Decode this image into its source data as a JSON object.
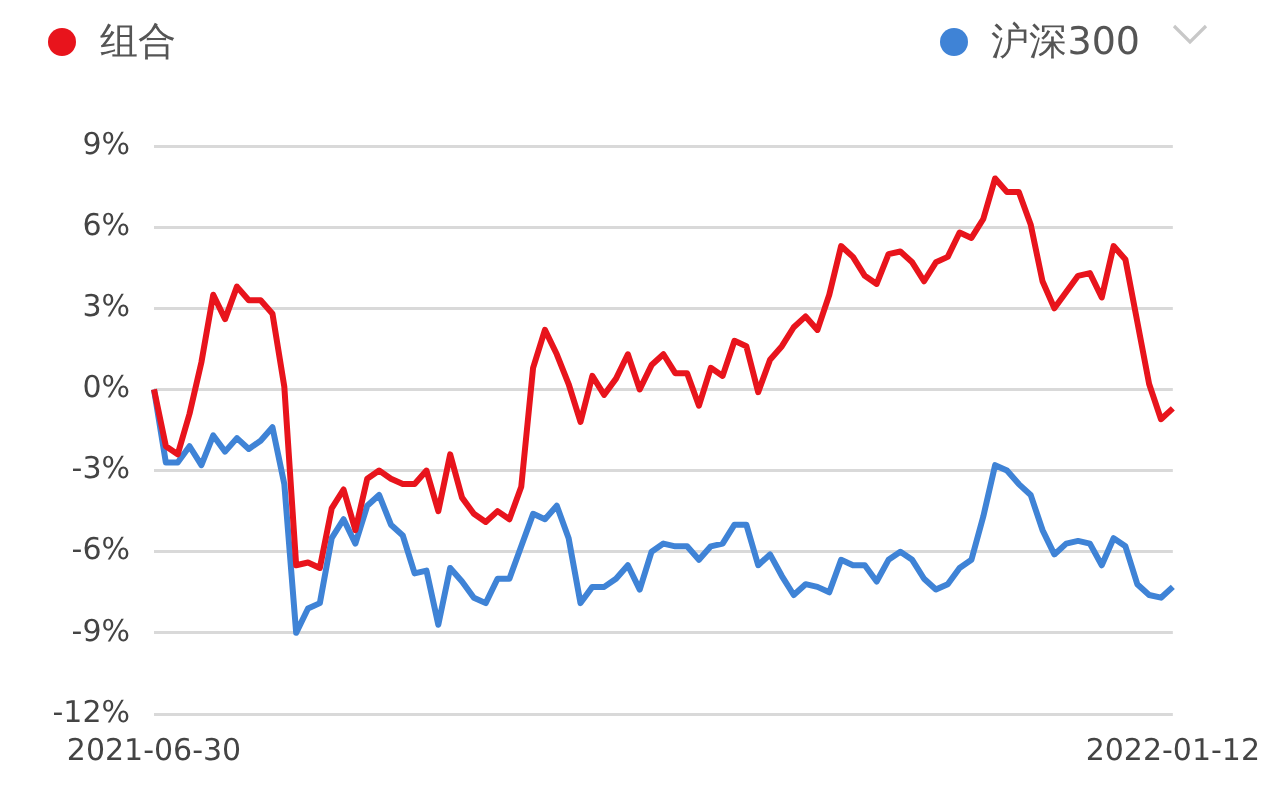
{
  "chart_data": {
    "type": "line",
    "categories": [
      "2021-06-30",
      null,
      null,
      null,
      null,
      null,
      null,
      null,
      null,
      null,
      null,
      null,
      null,
      null,
      null,
      null,
      null,
      null,
      null,
      null,
      null,
      null,
      null,
      null,
      null,
      null,
      null,
      null,
      null,
      null,
      null,
      null,
      null,
      null,
      null,
      null,
      null,
      null,
      null,
      null,
      null,
      null,
      null,
      null,
      null,
      null,
      null,
      null,
      null,
      null,
      null,
      null,
      null,
      null,
      null,
      null,
      null,
      null,
      null,
      null,
      null,
      null,
      null,
      null,
      null,
      null,
      null,
      null,
      null,
      null,
      null,
      null,
      null,
      null,
      null,
      null,
      null,
      null,
      null,
      null,
      null,
      null,
      null,
      null,
      null,
      null,
      "2022-01-12"
    ],
    "series": [
      {
        "name": "组合",
        "color": "#e8141c",
        "values": [
          0,
          -2.1,
          -2.4,
          -0.9,
          1.0,
          3.5,
          2.6,
          3.8,
          3.3,
          3.3,
          2.8,
          0.1,
          -6.5,
          -6.4,
          -6.6,
          -4.4,
          -3.7,
          -5.2,
          -3.3,
          -3.0,
          -3.3,
          -3.5,
          -3.5,
          -3.0,
          -4.5,
          -2.4,
          -4.0,
          -4.6,
          -4.9,
          -4.5,
          -4.8,
          -3.6,
          0.8,
          2.2,
          1.3,
          0.2,
          -1.2,
          0.5,
          -0.2,
          0.4,
          1.3,
          0,
          0.9,
          1.3,
          0.6,
          0.6,
          -0.6,
          0.8,
          0.5,
          1.8,
          1.6,
          -0.1,
          1.1,
          1.6,
          2.3,
          2.7,
          2.2,
          3.5,
          5.3,
          4.9,
          4.2,
          3.9,
          5.0,
          5.1,
          4.7,
          4.0,
          4.7,
          4.9,
          5.8,
          5.6,
          6.3,
          7.8,
          7.3,
          7.3,
          6.1,
          4.0,
          3.0,
          3.6,
          4.2,
          4.3,
          3.4,
          5.3,
          4.8,
          2.5,
          0.2,
          -1.1,
          -0.7
        ]
      },
      {
        "name": "沪深300",
        "color": "#3f83d6",
        "values": [
          0,
          -2.7,
          -2.7,
          -2.1,
          -2.8,
          -1.7,
          -2.3,
          -1.8,
          -2.2,
          -1.9,
          -1.4,
          -3.5,
          -9.0,
          -8.1,
          -7.9,
          -5.5,
          -4.8,
          -5.7,
          -4.3,
          -3.9,
          -5.0,
          -5.4,
          -6.8,
          -6.7,
          -8.7,
          -6.6,
          -7.1,
          -7.7,
          -7.9,
          -7.0,
          -7.0,
          -5.8,
          -4.6,
          -4.8,
          -4.3,
          -5.5,
          -7.9,
          -7.3,
          -7.3,
          -7.0,
          -6.5,
          -7.4,
          -6.0,
          -5.7,
          -5.8,
          -5.8,
          -6.3,
          -5.8,
          -5.7,
          -5.0,
          -5.0,
          -6.5,
          -6.1,
          -6.9,
          -7.6,
          -7.2,
          -7.3,
          -7.5,
          -6.3,
          -6.5,
          -6.5,
          -7.1,
          -6.3,
          -6.0,
          -6.3,
          -7.0,
          -7.4,
          -7.2,
          -6.6,
          -6.3,
          -4.7,
          -2.8,
          -3.0,
          -3.5,
          -3.9,
          -5.2,
          -6.1,
          -5.7,
          -5.6,
          -5.7,
          -6.5,
          -5.5,
          -5.8,
          -7.2,
          -7.6,
          -7.7,
          -7.3
        ]
      }
    ],
    "ylim": [
      -12,
      9
    ],
    "yticks": [
      {
        "value": 9,
        "label": "9%"
      },
      {
        "value": 6,
        "label": "6%"
      },
      {
        "value": 3,
        "label": "3%"
      },
      {
        "value": 0,
        "label": "0%"
      },
      {
        "value": -3,
        "label": "-3%"
      },
      {
        "value": -6,
        "label": "-6%"
      },
      {
        "value": -9,
        "label": "-9%"
      },
      {
        "value": -12,
        "label": "-12%"
      }
    ],
    "grid": "y",
    "legend": "top",
    "marker": "none",
    "line_style": "solid"
  }
}
